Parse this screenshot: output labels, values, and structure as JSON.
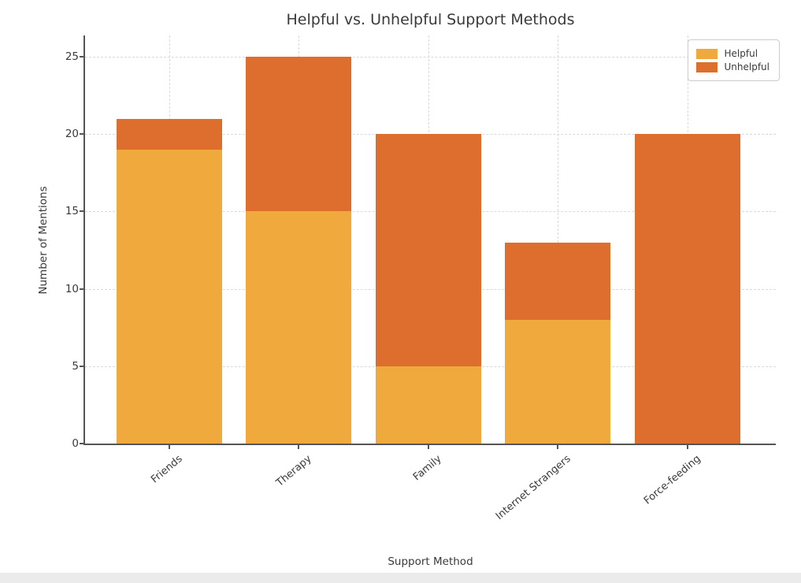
{
  "chart_data": {
    "type": "bar",
    "stacked": true,
    "title": "Helpful vs. Unhelpful Support Methods",
    "xlabel": "Support Method",
    "ylabel": "Number of Mentions",
    "categories": [
      "Friends",
      "Therapy",
      "Family",
      "Internet Strangers",
      "Force-feeding"
    ],
    "series": [
      {
        "name": "Helpful",
        "color": "#F0A93C",
        "values": [
          19,
          15,
          5,
          8,
          0
        ]
      },
      {
        "name": "Unhelpful",
        "color": "#DE6E2D",
        "values": [
          2,
          10,
          15,
          5,
          20
        ]
      }
    ],
    "totals": [
      21,
      25,
      20,
      13,
      20
    ],
    "yticks": [
      0,
      5,
      10,
      15,
      20,
      25
    ],
    "ylim": [
      0,
      25
    ],
    "grid": true,
    "grid_style": "dashed",
    "legend_position": "upper right",
    "legend_entries": [
      "Helpful",
      "Unhelpful"
    ]
  }
}
